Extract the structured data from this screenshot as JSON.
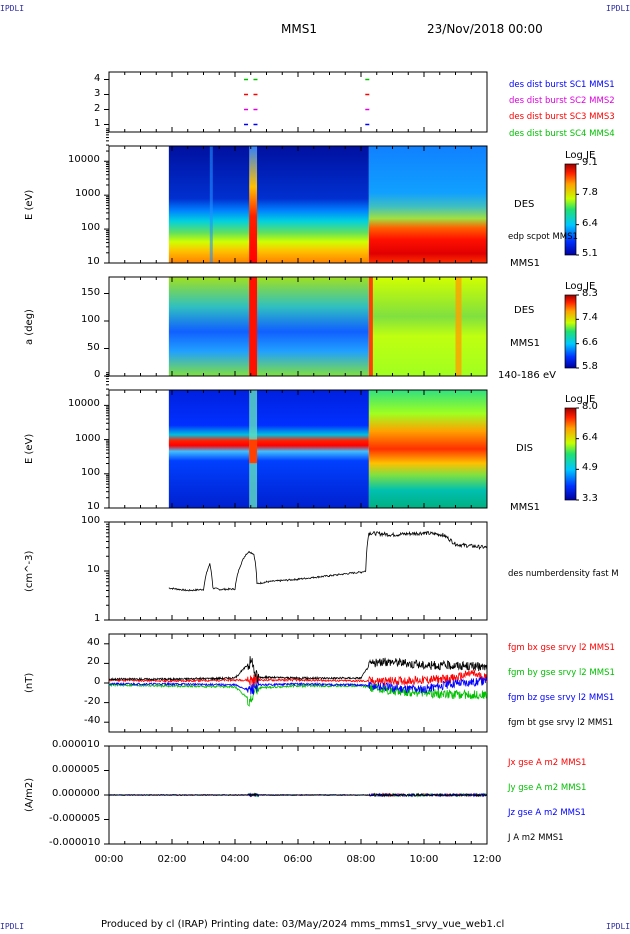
{
  "corner_label": "IPDLI",
  "header": {
    "spacecraft": "MMS1",
    "datetime": "23/Nov/2018 00:00"
  },
  "footer": "Produced by cl (IRAP)   Printing date: 03/May/2024   mms_mms1_srvy_vue_web1.cl",
  "time_axis": {
    "range_hours": [
      0,
      12
    ],
    "tick_labels": [
      "00:00",
      "02:00",
      "04:00",
      "06:00",
      "08:00",
      "10:00",
      "12:00"
    ]
  },
  "chart_data": [
    {
      "type": "scatter",
      "panel": "burst_availability",
      "ylim": [
        0.5,
        4.5
      ],
      "ytick_labels": [
        "1",
        "2",
        "3",
        "4"
      ],
      "legend": [
        {
          "label": "des dist burst SC1 MMS1",
          "color": "#0000ff",
          "level": 1
        },
        {
          "label": "des dist burst SC2 MMS2",
          "color": "#e000e0",
          "level": 2
        },
        {
          "label": "des dist burst SC3 MMS3",
          "color": "#ff0000",
          "level": 3
        },
        {
          "label": "des dist burst SC4 MMS4",
          "color": "#00c000",
          "level": 4
        }
      ],
      "burst_times_hours": [
        4.35,
        4.65,
        8.2
      ]
    },
    {
      "type": "heatmap",
      "panel": "des_energy",
      "ylabel": "E (eV)",
      "ytick_labels": [
        "10",
        "100",
        "1000",
        "10000"
      ],
      "yscale": "log",
      "ylim": [
        10,
        30000
      ],
      "right_labels": [
        "DES",
        "edp scpot MMS1",
        "MMS1"
      ],
      "colorbar": {
        "title": "Log JE",
        "max": "9.1",
        "mid_high": "7.8",
        "mid_low": "6.4",
        "min": "5.1"
      },
      "data_start_hour": 1.9
    },
    {
      "type": "heatmap",
      "panel": "des_pitch_angle",
      "ylabel": "a (deg)",
      "ytick_labels": [
        "0",
        "50",
        "100",
        "150"
      ],
      "ylim": [
        0,
        180
      ],
      "right_labels": [
        "DES",
        "MMS1",
        "140-186 eV"
      ],
      "colorbar": {
        "title": "Log JE",
        "max": "8.3",
        "mid_high": "7.4",
        "mid_low": "6.6",
        "min": "5.8"
      },
      "data_start_hour": 1.9
    },
    {
      "type": "heatmap",
      "panel": "dis_energy",
      "ylabel": "E (eV)",
      "ytick_labels": [
        "10",
        "100",
        "1000",
        "10000"
      ],
      "yscale": "log",
      "ylim": [
        10,
        30000
      ],
      "right_labels": [
        "DIS",
        "MMS1"
      ],
      "colorbar": {
        "title": "Log JE",
        "max": "8.0",
        "mid_high": "6.4",
        "mid_low": "4.9",
        "min": "3.3"
      },
      "data_start_hour": 1.9
    },
    {
      "type": "line",
      "panel": "density",
      "ylabel": "(cm^-3)",
      "yscale": "log",
      "ylim": [
        1,
        100
      ],
      "ytick_labels": [
        "1",
        "10",
        "100"
      ],
      "series": [
        {
          "name": "des numberdensity fast M",
          "color": "#000000",
          "x": [
            1.9,
            2.5,
            3.0,
            3.2,
            3.3,
            3.5,
            4.0,
            4.35,
            4.45,
            4.6,
            4.7,
            5.0,
            6.0,
            7.0,
            8.0,
            8.15,
            8.25,
            9.0,
            10.0,
            10.6,
            11.0,
            12.0
          ],
          "y": [
            4.5,
            4.0,
            4.2,
            14,
            4.5,
            4.2,
            4.3,
            22,
            25,
            22,
            5.5,
            6.0,
            6.8,
            8.0,
            9.5,
            10,
            60,
            55,
            60,
            55,
            35,
            30
          ]
        }
      ]
    },
    {
      "type": "line",
      "panel": "magnetic_field",
      "ylabel": "(nT)",
      "ylim": [
        -50,
        50
      ],
      "ytick_labels": [
        "-40",
        "-20",
        "0",
        "20",
        "40"
      ],
      "series": [
        {
          "name": "fgm bx gse srvy l2 MMS1",
          "color": "#ff0000",
          "x": [
            0,
            2,
            4,
            6,
            8,
            9,
            10,
            11,
            11.5,
            12
          ],
          "y": [
            3,
            2,
            3,
            3,
            2,
            2,
            3,
            5,
            10,
            5
          ]
        },
        {
          "name": "fgm by gse srvy l2 MMS1",
          "color": "#00c000",
          "x": [
            0,
            2,
            4,
            4.5,
            4.7,
            6,
            8,
            9,
            10,
            11,
            12
          ],
          "y": [
            -2,
            -3,
            -4,
            -18,
            -5,
            -3,
            -3,
            -8,
            -10,
            -12,
            -12
          ]
        },
        {
          "name": "fgm bz gse srvy l2 MMS1",
          "color": "#0000ff",
          "x": [
            0,
            2,
            4,
            4.5,
            4.7,
            6,
            8,
            9,
            10,
            11,
            12
          ],
          "y": [
            -1,
            -1,
            -2,
            -8,
            -2,
            -1,
            -2,
            -5,
            -6,
            0,
            2
          ]
        },
        {
          "name": "fgm bt gse srvy l2 MMS1",
          "color": "#000000",
          "x": [
            0,
            2,
            4,
            4.5,
            4.7,
            6,
            8,
            8.3,
            9,
            10,
            11,
            12
          ],
          "y": [
            4,
            4,
            5,
            22,
            6,
            5,
            5,
            20,
            22,
            18,
            18,
            16
          ]
        }
      ]
    },
    {
      "type": "line",
      "panel": "current_density",
      "ylabel": "(A/m2)",
      "ylim": [
        -1e-05,
        1e-05
      ],
      "ytick_labels": [
        "-0.000010",
        "-0.000005",
        "0.000000",
        "0.000005",
        "0.000010"
      ],
      "series": [
        {
          "name": "Jx gse A m2 MMS1",
          "color": "#ff0000",
          "x": [
            0,
            12
          ],
          "y": [
            0,
            0
          ]
        },
        {
          "name": "Jy gse A m2 MMS1",
          "color": "#00c000",
          "x": [
            0,
            12
          ],
          "y": [
            0,
            0
          ]
        },
        {
          "name": "Jz gse A m2 MMS1",
          "color": "#0000ff",
          "x": [
            0,
            12
          ],
          "y": [
            0,
            0
          ]
        },
        {
          "name": "J A m2 MMS1",
          "color": "#000000",
          "x": [
            0,
            12
          ],
          "y": [
            0,
            0
          ]
        }
      ]
    }
  ]
}
